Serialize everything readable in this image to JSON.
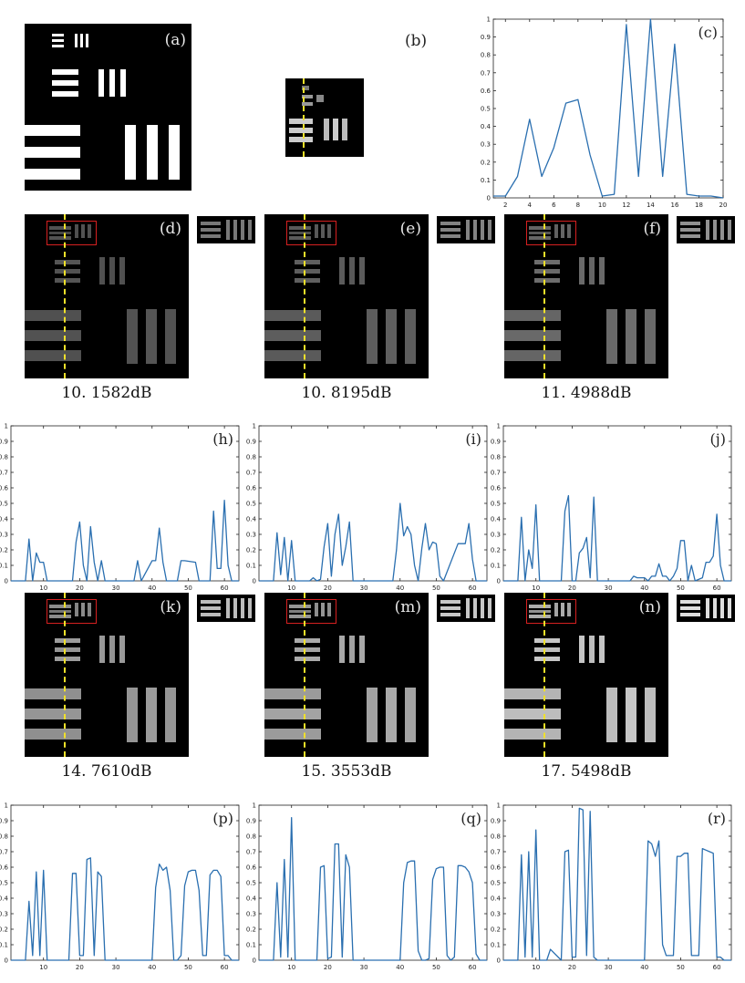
{
  "figure": {
    "panel_a": {
      "label": "(a)"
    },
    "panel_b": {
      "label": "(b)"
    },
    "recon_row1": [
      {
        "label": "(d)",
        "caption": "10. 1582dB"
      },
      {
        "label": "(e)",
        "caption": "10. 8195dB"
      },
      {
        "label": "(f)",
        "caption": "11. 4988dB"
      }
    ],
    "recon_row2": [
      {
        "label": "(k)",
        "caption": "14. 7610dB"
      },
      {
        "label": "(m)",
        "caption": "15. 3553dB"
      },
      {
        "label": "(n)",
        "caption": "17. 5498dB"
      }
    ],
    "profile_color": "#2a6fb0",
    "marker_line_color": "#f0e12a",
    "roi_box_color": "#d62020"
  },
  "chart_data": [
    {
      "type": "line",
      "label": "(c)",
      "xlim": [
        1,
        20
      ],
      "ylim": [
        0,
        1
      ],
      "xticks": [
        "2",
        "4",
        "6",
        "8",
        "10",
        "12",
        "14",
        "16",
        "18",
        "20"
      ],
      "yticks": [
        "0",
        "0.1",
        "0.2",
        "0.3",
        "0.4",
        "0.5",
        "0.6",
        "0.7",
        "0.8",
        "0.9",
        "1"
      ],
      "series": [
        {
          "x": [
            1,
            2,
            3,
            4,
            5,
            6,
            7,
            8,
            9,
            10,
            11,
            12,
            13,
            14,
            15,
            16,
            17,
            18,
            19,
            20
          ],
          "values": [
            0.01,
            0.01,
            0.12,
            0.44,
            0.12,
            0.28,
            0.53,
            0.55,
            0.24,
            0.01,
            0.02,
            0.97,
            0.12,
            1.0,
            0.12,
            0.86,
            0.02,
            0.01,
            0.01,
            0.0
          ]
        }
      ]
    },
    {
      "type": "line",
      "label": "(h)",
      "xlim": [
        1,
        64
      ],
      "ylim": [
        0,
        1
      ],
      "xticks": [
        "10",
        "20",
        "30",
        "40",
        "50",
        "60"
      ],
      "yticks": [
        "0",
        "0.1",
        "0.2",
        "0.3",
        "0.4",
        "0.5",
        "0.6",
        "0.7",
        "0.8",
        "0.9",
        "1"
      ],
      "series": [
        {
          "x": [
            1,
            5,
            6,
            7,
            8,
            9,
            10,
            11,
            12,
            13,
            18,
            19,
            20,
            21,
            22,
            23,
            24,
            25,
            26,
            27,
            35,
            36,
            37,
            40,
            41,
            42,
            43,
            44,
            47,
            48,
            49,
            52,
            53,
            56,
            57,
            58,
            59,
            60,
            61,
            62,
            64
          ],
          "values": [
            0,
            0,
            0.27,
            0,
            0.18,
            0.12,
            0.12,
            0,
            0,
            0,
            0,
            0.25,
            0.38,
            0.1,
            0,
            0.35,
            0.12,
            0,
            0.13,
            0,
            0,
            0.13,
            0,
            0.13,
            0.13,
            0.34,
            0.12,
            0,
            0,
            0.13,
            0.13,
            0.12,
            0,
            0,
            0.45,
            0.08,
            0.08,
            0.52,
            0.1,
            0,
            0
          ]
        }
      ]
    },
    {
      "type": "line",
      "label": "(i)",
      "xlim": [
        1,
        64
      ],
      "ylim": [
        0,
        1
      ],
      "xticks": [
        "10",
        "20",
        "30",
        "40",
        "50",
        "60"
      ],
      "yticks": [
        "0",
        "0.1",
        "0.2",
        "0.3",
        "0.4",
        "0.5",
        "0.6",
        "0.7",
        "0.8",
        "0.9",
        "1"
      ],
      "series": [
        {
          "x": [
            1,
            5,
            6,
            7,
            8,
            9,
            10,
            11,
            15,
            16,
            17,
            18,
            19,
            20,
            21,
            22,
            23,
            24,
            25,
            26,
            27,
            38,
            39,
            40,
            41,
            42,
            43,
            44,
            45,
            46,
            47,
            48,
            49,
            50,
            51,
            52,
            56,
            57,
            58,
            59,
            60,
            61,
            64
          ],
          "values": [
            0,
            0,
            0.31,
            0.04,
            0.28,
            0,
            0.26,
            0,
            0,
            0.02,
            0,
            0.01,
            0.22,
            0.37,
            0.03,
            0.3,
            0.43,
            0.1,
            0.22,
            0.38,
            0,
            0,
            0.2,
            0.5,
            0.29,
            0.35,
            0.3,
            0.1,
            0,
            0.21,
            0.37,
            0.2,
            0.25,
            0.24,
            0.03,
            0,
            0.24,
            0.24,
            0.24,
            0.37,
            0.14,
            0,
            0
          ]
        }
      ]
    },
    {
      "type": "line",
      "label": "(j)",
      "xlim": [
        1,
        64
      ],
      "ylim": [
        0,
        1
      ],
      "xticks": [
        "10",
        "20",
        "30",
        "40",
        "50",
        "60"
      ],
      "yticks": [
        "0",
        "0.1",
        "0.2",
        "0.3",
        "0.4",
        "0.5",
        "0.6",
        "0.7",
        "0.8",
        "0.9",
        "1"
      ],
      "series": [
        {
          "x": [
            1,
            5,
            6,
            7,
            8,
            9,
            10,
            11,
            17,
            18,
            19,
            20,
            21,
            22,
            23,
            24,
            25,
            26,
            27,
            36,
            37,
            38,
            40,
            41,
            42,
            43,
            44,
            45,
            46,
            47,
            48,
            49,
            50,
            51,
            52,
            53,
            54,
            56,
            57,
            58,
            59,
            60,
            61,
            62,
            64
          ],
          "values": [
            0,
            0,
            0.41,
            0,
            0.2,
            0.08,
            0.49,
            0,
            0,
            0.45,
            0.55,
            0,
            0,
            0.18,
            0.21,
            0.28,
            0.02,
            0.54,
            0,
            0,
            0.03,
            0.02,
            0.02,
            0,
            0.03,
            0.03,
            0.11,
            0.03,
            0.03,
            0,
            0.03,
            0.08,
            0.26,
            0.26,
            0,
            0.1,
            0,
            0.02,
            0.12,
            0.12,
            0.16,
            0.43,
            0.1,
            0,
            0
          ]
        }
      ]
    },
    {
      "type": "line",
      "label": "(p)",
      "xlim": [
        1,
        64
      ],
      "ylim": [
        0,
        1
      ],
      "xticks": [
        "10",
        "20",
        "30",
        "40",
        "50",
        "60"
      ],
      "yticks": [
        "0",
        "0.1",
        "0.2",
        "0.3",
        "0.4",
        "0.5",
        "0.6",
        "0.7",
        "0.8",
        "0.9",
        "1"
      ],
      "series": [
        {
          "x": [
            1,
            5,
            6,
            7,
            8,
            9,
            10,
            11,
            17,
            18,
            19,
            20,
            21,
            22,
            23,
            24,
            25,
            26,
            27,
            40,
            41,
            42,
            43,
            44,
            45,
            46,
            47,
            48,
            49,
            50,
            51,
            52,
            53,
            54,
            55,
            56,
            57,
            58,
            59,
            60,
            61,
            62,
            64
          ],
          "values": [
            0,
            0,
            0.38,
            0.03,
            0.57,
            0.03,
            0.58,
            0,
            0,
            0.56,
            0.56,
            0.03,
            0.03,
            0.65,
            0.66,
            0.03,
            0.57,
            0.54,
            0,
            0,
            0.47,
            0.62,
            0.58,
            0.6,
            0.45,
            0,
            0,
            0.03,
            0.48,
            0.57,
            0.58,
            0.58,
            0.45,
            0.03,
            0.03,
            0.55,
            0.58,
            0.58,
            0.54,
            0.03,
            0.03,
            0,
            0
          ]
        }
      ]
    },
    {
      "type": "line",
      "label": "(q)",
      "xlim": [
        1,
        64
      ],
      "ylim": [
        0,
        1
      ],
      "xticks": [
        "10",
        "20",
        "30",
        "40",
        "50",
        "60"
      ],
      "yticks": [
        "0",
        "0.1",
        "0.2",
        "0.3",
        "0.4",
        "0.5",
        "0.6",
        "0.7",
        "0.8",
        "0.9",
        "1"
      ],
      "series": [
        {
          "x": [
            1,
            5,
            6,
            7,
            8,
            9,
            10,
            11,
            17,
            18,
            19,
            20,
            21,
            22,
            23,
            24,
            25,
            26,
            27,
            40,
            41,
            42,
            43,
            44,
            45,
            46,
            47,
            48,
            49,
            50,
            51,
            52,
            53,
            54,
            55,
            56,
            57,
            58,
            59,
            60,
            61,
            62,
            64
          ],
          "values": [
            0,
            0,
            0.5,
            0.02,
            0.65,
            0.02,
            0.92,
            0,
            0,
            0.6,
            0.61,
            0.01,
            0.02,
            0.75,
            0.75,
            0.02,
            0.68,
            0.6,
            0,
            0,
            0.5,
            0.63,
            0.64,
            0.64,
            0.06,
            0,
            0,
            0.01,
            0.52,
            0.59,
            0.6,
            0.6,
            0.03,
            0,
            0.02,
            0.61,
            0.61,
            0.6,
            0.57,
            0.5,
            0.04,
            0,
            0
          ]
        }
      ]
    },
    {
      "type": "line",
      "label": "(r)",
      "xlim": [
        1,
        64
      ],
      "ylim": [
        0,
        1
      ],
      "xticks": [
        "10",
        "20",
        "30",
        "40",
        "50",
        "60"
      ],
      "yticks": [
        "0",
        "0.1",
        "0.2",
        "0.3",
        "0.4",
        "0.5",
        "0.6",
        "0.7",
        "0.8",
        "0.9",
        "1"
      ],
      "series": [
        {
          "x": [
            1,
            5,
            6,
            7,
            8,
            9,
            10,
            11,
            13,
            14,
            17,
            18,
            19,
            20,
            21,
            22,
            23,
            24,
            25,
            26,
            27,
            40,
            41,
            42,
            43,
            44,
            45,
            46,
            47,
            48,
            49,
            50,
            51,
            52,
            53,
            54,
            55,
            56,
            57,
            58,
            59,
            60,
            61,
            62,
            64
          ],
          "values": [
            0,
            0,
            0.68,
            0.02,
            0.7,
            0.02,
            0.84,
            0,
            0,
            0.07,
            0,
            0.7,
            0.71,
            0.02,
            0.02,
            0.98,
            0.97,
            0.03,
            0.96,
            0.02,
            0,
            0,
            0.77,
            0.75,
            0.67,
            0.77,
            0.1,
            0.03,
            0.03,
            0.03,
            0.67,
            0.67,
            0.69,
            0.69,
            0.03,
            0.03,
            0.03,
            0.72,
            0.71,
            0.7,
            0.69,
            0.02,
            0.02,
            0,
            0
          ]
        }
      ]
    }
  ]
}
